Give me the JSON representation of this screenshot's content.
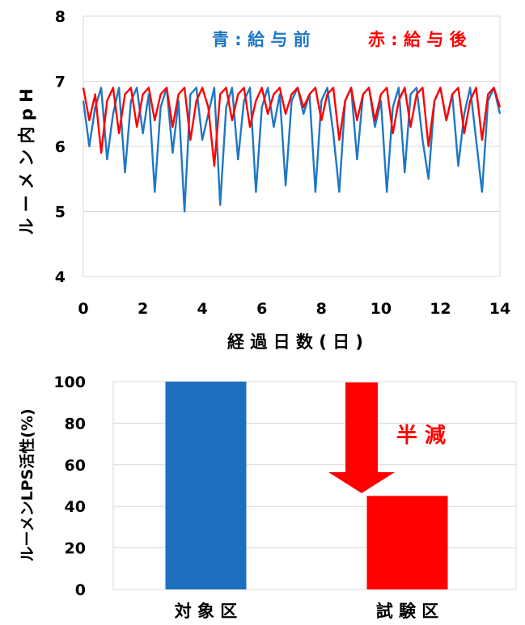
{
  "chart_data": [
    {
      "type": "line",
      "xlabel": "経 過 日 数 ( 日 )",
      "ylabel": "ル ー メ ン 内 p H",
      "xlim": [
        0,
        14
      ],
      "ylim": [
        4,
        8
      ],
      "x_ticks": [
        "0",
        "2",
        "4",
        "6",
        "8",
        "10",
        "12",
        "14"
      ],
      "y_ticks": [
        "4",
        "5",
        "6",
        "7",
        "8"
      ],
      "grid": true,
      "legend": {
        "position": "top-right",
        "before": "青 : 給 与 前",
        "after": "赤 : 給 与 後"
      },
      "series": [
        {
          "name": "給与前",
          "color": "#1f77c4",
          "x": [
            0.0,
            0.2,
            0.4,
            0.6,
            0.8,
            1.0,
            1.2,
            1.4,
            1.6,
            1.8,
            2.0,
            2.2,
            2.4,
            2.6,
            2.8,
            3.0,
            3.2,
            3.4,
            3.6,
            3.8,
            4.0,
            4.2,
            4.4,
            4.6,
            4.8,
            5.0,
            5.2,
            5.4,
            5.6,
            5.8,
            6.0,
            6.2,
            6.4,
            6.6,
            6.8,
            7.0,
            7.2,
            7.4,
            7.6,
            7.8,
            8.0,
            8.2,
            8.4,
            8.6,
            8.8,
            9.0,
            9.2,
            9.4,
            9.6,
            9.8,
            10.0,
            10.2,
            10.4,
            10.6,
            10.8,
            11.0,
            11.2,
            11.4,
            11.6,
            11.8,
            12.0,
            12.2,
            12.4,
            12.6,
            12.8,
            13.0,
            13.2,
            13.4,
            13.6,
            13.8,
            14.0
          ],
          "y": [
            6.7,
            6.0,
            6.6,
            6.9,
            5.8,
            6.5,
            6.9,
            5.6,
            6.7,
            6.9,
            6.2,
            6.8,
            5.3,
            6.6,
            6.9,
            5.9,
            6.7,
            5.0,
            6.8,
            6.9,
            6.1,
            6.5,
            6.9,
            5.1,
            6.6,
            6.9,
            5.8,
            6.7,
            6.9,
            5.3,
            6.6,
            6.9,
            6.3,
            6.8,
            5.4,
            6.7,
            6.9,
            6.5,
            6.8,
            5.3,
            6.7,
            6.9,
            6.2,
            5.3,
            6.7,
            6.9,
            5.8,
            6.8,
            6.9,
            6.3,
            6.7,
            5.3,
            6.6,
            6.9,
            5.6,
            6.8,
            6.9,
            6.1,
            5.5,
            6.7,
            6.9,
            6.4,
            6.8,
            5.7,
            6.5,
            6.9,
            6.1,
            5.3,
            6.7,
            6.9,
            6.5
          ]
        },
        {
          "name": "給与後",
          "color": "#ff0000",
          "x": [
            0.0,
            0.2,
            0.4,
            0.6,
            0.8,
            1.0,
            1.2,
            1.4,
            1.6,
            1.8,
            2.0,
            2.2,
            2.4,
            2.6,
            2.8,
            3.0,
            3.2,
            3.4,
            3.6,
            3.8,
            4.0,
            4.2,
            4.4,
            4.6,
            4.8,
            5.0,
            5.2,
            5.4,
            5.6,
            5.8,
            6.0,
            6.2,
            6.4,
            6.6,
            6.8,
            7.0,
            7.2,
            7.4,
            7.6,
            7.8,
            8.0,
            8.2,
            8.4,
            8.6,
            8.8,
            9.0,
            9.2,
            9.4,
            9.6,
            9.8,
            10.0,
            10.2,
            10.4,
            10.6,
            10.8,
            11.0,
            11.2,
            11.4,
            11.6,
            11.8,
            12.0,
            12.2,
            12.4,
            12.6,
            12.8,
            13.0,
            13.2,
            13.4,
            13.6,
            13.8,
            14.0
          ],
          "y": [
            6.9,
            6.4,
            6.8,
            5.9,
            6.7,
            6.9,
            6.2,
            6.8,
            6.9,
            6.3,
            6.8,
            6.9,
            6.4,
            6.8,
            6.9,
            6.3,
            6.8,
            6.9,
            6.1,
            6.7,
            6.9,
            6.6,
            5.7,
            6.8,
            6.9,
            6.4,
            6.8,
            6.9,
            6.3,
            6.7,
            6.9,
            6.5,
            6.8,
            6.9,
            6.5,
            6.8,
            6.9,
            6.6,
            6.8,
            6.9,
            6.4,
            6.8,
            6.9,
            6.1,
            6.7,
            6.9,
            6.4,
            6.8,
            6.9,
            6.4,
            6.8,
            6.9,
            6.2,
            6.7,
            6.9,
            6.3,
            6.8,
            6.9,
            6.0,
            6.7,
            6.9,
            6.4,
            6.8,
            6.9,
            6.2,
            6.7,
            6.9,
            6.1,
            6.8,
            6.9,
            6.6
          ]
        }
      ]
    },
    {
      "type": "bar",
      "ylabel": "ルーメンLPS活性(%)",
      "ylim": [
        0,
        100
      ],
      "y_ticks": [
        "0",
        "20",
        "40",
        "60",
        "80",
        "100"
      ],
      "grid": true,
      "categories": [
        "対 象 区",
        "試 験 区"
      ],
      "values": [
        100,
        45
      ],
      "colors": [
        "#1f6fbf",
        "#ff0000"
      ],
      "annotation": {
        "text": "半 減",
        "color": "#ff0000",
        "arrow_color": "#ff0000"
      }
    }
  ]
}
